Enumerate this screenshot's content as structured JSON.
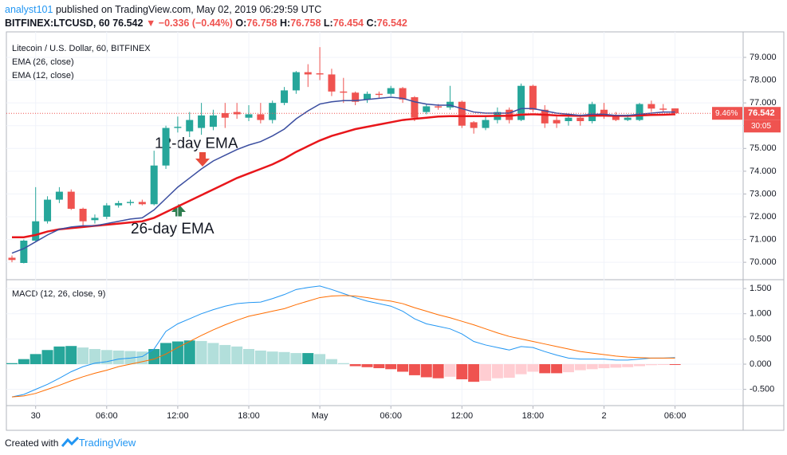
{
  "header": {
    "author": "analyst101",
    "published": "published on TradingView.com, May 02, 2019 06:29:59 UTC",
    "symbol": "BITFINEX:LTCUSD, 60",
    "price": "76.542",
    "change": "▼ −0.336 (−0.44%)",
    "ohlc": [
      {
        "key": "O:",
        "value": "76.758"
      },
      {
        "key": "H:",
        "value": "76.758"
      },
      {
        "key": "L:",
        "value": "76.454"
      },
      {
        "key": "C:",
        "value": "76.542"
      }
    ]
  },
  "footer": {
    "created": "Created with",
    "brand": "TradingView"
  },
  "chart_data": [
    {
      "type": "candlestick",
      "title": "Litecoin / U.S. Dollar, 60, BITFINEX",
      "up_color": "#26a69a",
      "down_color": "#ef5350",
      "open": [
        70.2,
        69.97,
        70.95,
        71.8,
        72.75,
        73.1,
        72.35,
        71.85,
        72.0,
        72.5,
        72.6,
        72.65,
        72.55,
        74.25,
        75.9,
        75.75,
        75.9,
        75.95,
        76.55,
        76.6,
        76.35,
        76.5,
        76.25,
        77.0,
        77.55,
        78.35,
        78.3,
        78.25,
        77.5,
        77.45,
        77.15,
        77.4,
        77.4,
        77.65,
        77.25,
        76.6,
        76.85,
        76.8,
        77.05,
        76.15,
        75.9,
        76.25,
        76.7,
        76.25,
        77.75,
        76.7,
        76.25,
        76.2,
        76.35,
        76.2,
        76.7,
        76.45,
        76.25,
        76.25,
        76.95,
        76.75,
        76.758
      ],
      "high": [
        70.3,
        71.0,
        73.3,
        72.9,
        73.3,
        73.2,
        72.4,
        72.1,
        72.6,
        72.7,
        72.75,
        72.75,
        74.9,
        76.0,
        76.4,
        76.6,
        77.0,
        76.7,
        77.0,
        77.0,
        76.9,
        77.0,
        77.1,
        77.7,
        78.4,
        78.7,
        79.45,
        78.5,
        78.1,
        77.5,
        77.5,
        77.5,
        77.75,
        77.7,
        77.3,
        76.95,
        76.95,
        77.75,
        77.1,
        76.2,
        76.4,
        76.8,
        76.8,
        77.85,
        77.8,
        76.9,
        76.4,
        76.5,
        76.5,
        77.05,
        77.0,
        76.6,
        76.5,
        77.0,
        77.1,
        76.95,
        76.758
      ],
      "low": [
        70.0,
        69.95,
        70.9,
        71.7,
        72.6,
        72.3,
        71.6,
        71.7,
        71.9,
        72.4,
        72.5,
        72.5,
        72.5,
        74.1,
        75.7,
        75.5,
        75.6,
        75.8,
        75.9,
        76.3,
        76.2,
        76.1,
        76.1,
        76.9,
        77.4,
        77.7,
        78.0,
        77.3,
        77.0,
        76.9,
        77.0,
        77.2,
        77.3,
        77.0,
        76.2,
        76.5,
        76.7,
        76.7,
        75.9,
        75.65,
        75.8,
        76.1,
        76.1,
        76.2,
        76.6,
        75.9,
        75.9,
        76.0,
        76.0,
        76.1,
        76.3,
        76.2,
        76.2,
        76.2,
        76.6,
        76.6,
        76.454
      ],
      "close": [
        70.1,
        70.95,
        71.8,
        72.75,
        73.1,
        72.35,
        71.8,
        71.95,
        72.5,
        72.6,
        72.65,
        72.55,
        74.25,
        75.9,
        75.95,
        76.25,
        76.45,
        76.45,
        76.35,
        76.5,
        76.5,
        76.25,
        77.0,
        77.55,
        78.35,
        78.25,
        78.25,
        77.5,
        77.45,
        77.05,
        77.4,
        77.35,
        77.65,
        77.15,
        76.35,
        76.85,
        76.8,
        77.05,
        76.0,
        75.9,
        76.25,
        76.6,
        76.25,
        77.75,
        76.7,
        76.1,
        76.1,
        76.35,
        76.2,
        76.95,
        76.45,
        76.25,
        76.35,
        76.95,
        76.75,
        76.7,
        76.542
      ],
      "last_price_label": "76.542",
      "change_label": "9.46%",
      "countdown": "30:05",
      "series": [
        {
          "name": "EMA (26, close)",
          "color": "#e8161b",
          "values": [
            71.1,
            71.1,
            71.2,
            71.35,
            71.45,
            71.5,
            71.55,
            71.6,
            71.65,
            71.7,
            71.75,
            71.8,
            71.95,
            72.2,
            72.45,
            72.7,
            72.95,
            73.2,
            73.45,
            73.7,
            73.9,
            74.1,
            74.3,
            74.55,
            74.85,
            75.1,
            75.35,
            75.55,
            75.7,
            75.85,
            75.95,
            76.05,
            76.15,
            76.25,
            76.3,
            76.35,
            76.4,
            76.42,
            76.42,
            76.42,
            76.42,
            76.43,
            76.43,
            76.48,
            76.5,
            76.48,
            76.45,
            76.44,
            76.43,
            76.44,
            76.44,
            76.43,
            76.43,
            76.45,
            76.47,
            76.48,
            76.5
          ]
        },
        {
          "name": "EMA (12, close)",
          "color": "#3b4ea0",
          "values": [
            70.4,
            70.6,
            70.9,
            71.2,
            71.45,
            71.55,
            71.6,
            71.6,
            71.7,
            71.8,
            71.9,
            71.95,
            72.3,
            72.8,
            73.3,
            73.7,
            74.1,
            74.45,
            74.7,
            74.95,
            75.15,
            75.3,
            75.55,
            75.85,
            76.3,
            76.65,
            76.95,
            77.05,
            77.1,
            77.1,
            77.15,
            77.2,
            77.25,
            77.2,
            77.05,
            76.95,
            76.9,
            76.9,
            76.75,
            76.6,
            76.55,
            76.55,
            76.55,
            76.75,
            76.75,
            76.65,
            76.55,
            76.5,
            76.45,
            76.5,
            76.5,
            76.45,
            76.45,
            76.5,
            76.55,
            76.6,
            76.6
          ]
        }
      ],
      "annotations": [
        "12-day EMA",
        "26-day EMA"
      ],
      "ylim": [
        69.27,
        80.12
      ],
      "grid": true,
      "yticks": [
        {
          "value": 70,
          "label": "70.000"
        },
        {
          "value": 71,
          "label": "71.000"
        },
        {
          "value": 72,
          "label": "72.000"
        },
        {
          "value": 73,
          "label": "73.000"
        },
        {
          "value": 74,
          "label": "74.000"
        },
        {
          "value": 75,
          "label": "75.000"
        },
        {
          "value": 76,
          "label": "76.000"
        },
        {
          "value": 77,
          "label": "77.000"
        },
        {
          "value": 78,
          "label": "78.000"
        },
        {
          "value": 79,
          "label": "79.000"
        }
      ],
      "xticks": [
        {
          "value": 2,
          "label": "30"
        },
        {
          "value": 8,
          "label": "06:00"
        },
        {
          "value": 14,
          "label": "12:00"
        },
        {
          "value": 20,
          "label": "18:00"
        },
        {
          "value": 26,
          "label": "May"
        },
        {
          "value": 32,
          "label": "06:00"
        },
        {
          "value": 38,
          "label": "12:00"
        },
        {
          "value": 44,
          "label": "18:00"
        },
        {
          "value": 50,
          "label": "2"
        },
        {
          "value": 56,
          "label": "06:00"
        }
      ]
    },
    {
      "type": "macd",
      "title": "MACD (12, 26, close, 9)",
      "histogram_colors": {
        "up_rising": "#26a69a",
        "up_falling": "#b2dfdb",
        "down_falling": "#ef5350",
        "down_rising": "#ffcdd2"
      },
      "histogram": [
        0.02,
        0.1,
        0.2,
        0.28,
        0.35,
        0.36,
        0.33,
        0.3,
        0.28,
        0.27,
        0.26,
        0.25,
        0.3,
        0.42,
        0.45,
        0.47,
        0.46,
        0.42,
        0.38,
        0.35,
        0.3,
        0.27,
        0.25,
        0.24,
        0.22,
        0.22,
        0.2,
        0.1,
        0.02,
        -0.04,
        -0.06,
        -0.08,
        -0.1,
        -0.15,
        -0.22,
        -0.26,
        -0.28,
        -0.25,
        -0.3,
        -0.35,
        -0.33,
        -0.28,
        -0.27,
        -0.2,
        -0.15,
        -0.18,
        -0.18,
        -0.16,
        -0.12,
        -0.1,
        -0.08,
        -0.07,
        -0.06,
        -0.04,
        -0.02,
        -0.01,
        -0.01
      ],
      "series": [
        {
          "color": "#2196f3",
          "values": [
            -0.65,
            -0.6,
            -0.5,
            -0.4,
            -0.28,
            -0.15,
            -0.05,
            0.02,
            0.05,
            0.1,
            0.12,
            0.15,
            0.3,
            0.65,
            0.8,
            0.9,
            1.0,
            1.08,
            1.15,
            1.2,
            1.22,
            1.23,
            1.3,
            1.38,
            1.48,
            1.52,
            1.55,
            1.48,
            1.4,
            1.32,
            1.25,
            1.2,
            1.15,
            1.05,
            0.9,
            0.8,
            0.75,
            0.7,
            0.6,
            0.45,
            0.38,
            0.33,
            0.28,
            0.35,
            0.33,
            0.25,
            0.18,
            0.12,
            0.1,
            0.1,
            0.1,
            0.08,
            0.08,
            0.1,
            0.12,
            0.12,
            0.13
          ]
        },
        {
          "color": "#ff6d00",
          "values": [
            -0.65,
            -0.63,
            -0.58,
            -0.5,
            -0.42,
            -0.33,
            -0.25,
            -0.18,
            -0.12,
            -0.05,
            0.0,
            0.05,
            0.1,
            0.2,
            0.33,
            0.45,
            0.57,
            0.68,
            0.78,
            0.87,
            0.95,
            1.0,
            1.05,
            1.1,
            1.18,
            1.25,
            1.32,
            1.35,
            1.36,
            1.35,
            1.32,
            1.28,
            1.25,
            1.2,
            1.12,
            1.05,
            0.98,
            0.92,
            0.85,
            0.78,
            0.7,
            0.62,
            0.55,
            0.5,
            0.45,
            0.4,
            0.35,
            0.3,
            0.25,
            0.22,
            0.19,
            0.16,
            0.14,
            0.13,
            0.12,
            0.12,
            0.12
          ]
        }
      ],
      "ylim": [
        -0.806,
        1.659
      ],
      "grid": true,
      "yticks": [
        {
          "value": -0.5,
          "label": "-0.500"
        },
        {
          "value": 0,
          "label": "0.000"
        },
        {
          "value": 0.5,
          "label": "0.500"
        },
        {
          "value": 1,
          "label": "1.000"
        },
        {
          "value": 1.5,
          "label": "1.500"
        }
      ]
    }
  ]
}
